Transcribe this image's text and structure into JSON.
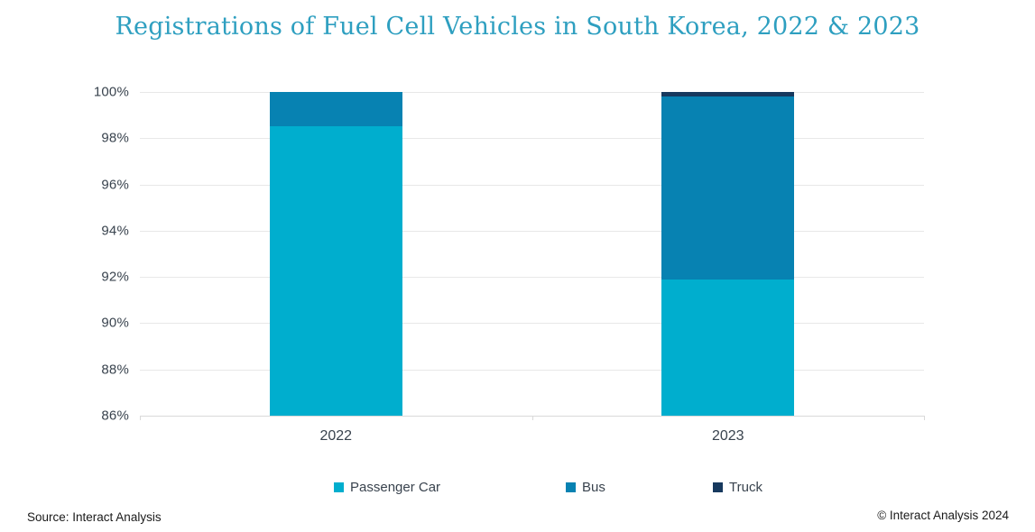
{
  "title": "Registrations of Fuel Cell Vehicles in South Korea, 2022 & 2023",
  "colors": {
    "title": "#2E9FC0",
    "axis_text": "#39434E",
    "gridline": "#E8E8E8",
    "passenger_car": "#00AECE",
    "bus": "#0782B2",
    "truck": "#17395E"
  },
  "chart_data": {
    "type": "bar",
    "stacked": true,
    "title": "Registrations of Fuel Cell Vehicles in South Korea, 2022 & 2023",
    "categories": [
      "2022",
      "2023"
    ],
    "series": [
      {
        "name": "Passenger Car",
        "color": "#00AECE",
        "values": [
          98.5,
          91.9
        ]
      },
      {
        "name": "Bus",
        "color": "#0782B2",
        "values": [
          1.5,
          7.9
        ]
      },
      {
        "name": "Truck",
        "color": "#17395E",
        "values": [
          0.0,
          0.2
        ]
      }
    ],
    "xlabel": "",
    "ylabel": "",
    "y_axis": {
      "min": 86,
      "max": 100,
      "step": 2,
      "format": "percent",
      "ticks": [
        "100%",
        "98%",
        "96%",
        "94%",
        "92%",
        "90%",
        "88%",
        "86%"
      ]
    },
    "grid": true,
    "legend_position": "bottom",
    "legend_items": [
      {
        "label": "Passenger Car",
        "color": "#00AECE",
        "x": 370
      },
      {
        "label": "Bus",
        "color": "#0782B2",
        "x": 627
      },
      {
        "label": "Truck",
        "color": "#17395E",
        "x": 790
      }
    ]
  },
  "footer": {
    "source": "Source: Interact Analysis",
    "copyright": "© Interact Analysis 2024"
  }
}
